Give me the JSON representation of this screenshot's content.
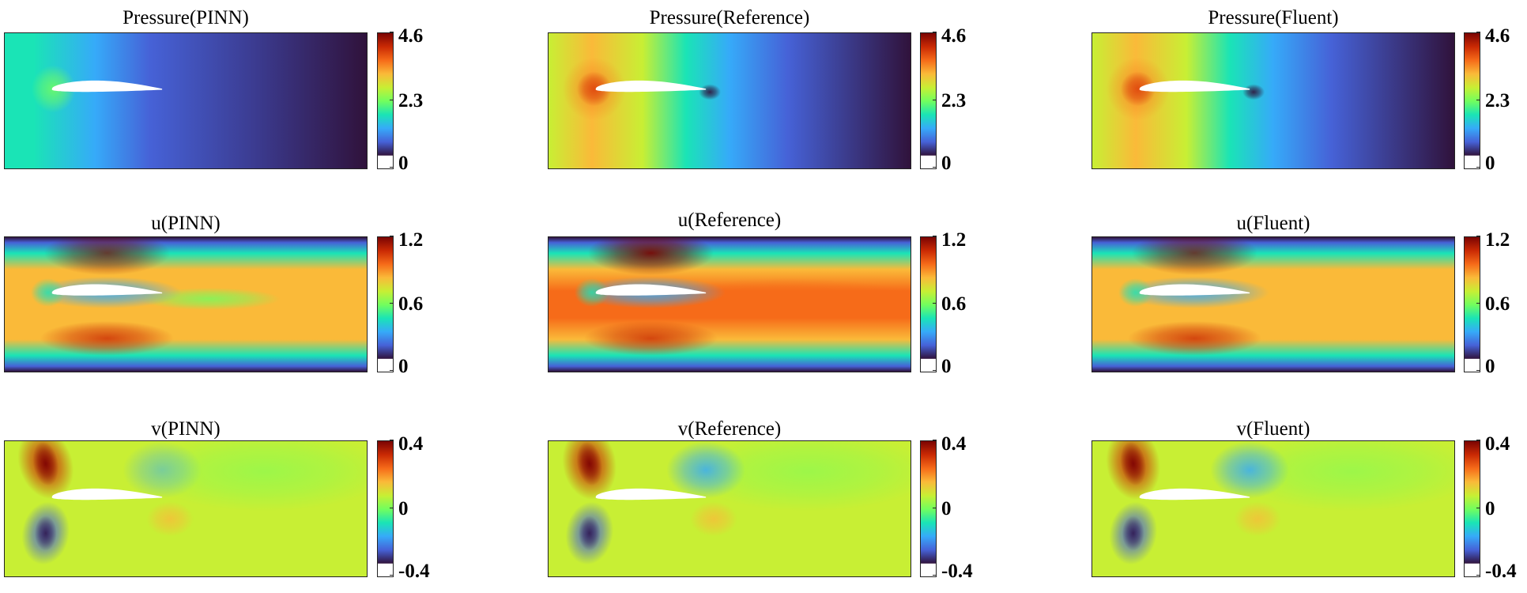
{
  "chart_data": {
    "type": "heatmap",
    "layout": "3x3 grid",
    "colormap": "turbo",
    "colors": [
      "#30123b",
      "#4662d7",
      "#36aaf9",
      "#1ae4b6",
      "#72fe5e",
      "#c8ef34",
      "#faba39",
      "#f66b19",
      "#ca2a04",
      "#7a0403"
    ],
    "rows": [
      {
        "variable": "Pressure",
        "range": [
          0,
          4.6
        ],
        "ticks": [
          "0",
          "2.3",
          "4.6"
        ],
        "panels": [
          {
            "title": "Pressure(PINN)",
            "source": "PINN"
          },
          {
            "title": "Pressure(Reference)",
            "source": "Reference"
          },
          {
            "title": "Pressure(Fluent)",
            "source": "Fluent"
          }
        ]
      },
      {
        "variable": "u",
        "range": [
          0,
          1.2
        ],
        "ticks": [
          "0",
          "0.6",
          "1.2"
        ],
        "panels": [
          {
            "title": "u(PINN)",
            "source": "PINN"
          },
          {
            "title": "u(Reference)",
            "source": "Reference"
          },
          {
            "title": "u(Fluent)",
            "source": "Fluent"
          }
        ]
      },
      {
        "variable": "v",
        "range": [
          -0.4,
          0.4
        ],
        "ticks": [
          "-0.4",
          "0",
          "0.4"
        ],
        "panels": [
          {
            "title": "v(PINN)",
            "source": "PINN"
          },
          {
            "title": "v(Reference)",
            "source": "Reference"
          },
          {
            "title": "v(Fluent)",
            "source": "Fluent"
          }
        ]
      }
    ]
  }
}
